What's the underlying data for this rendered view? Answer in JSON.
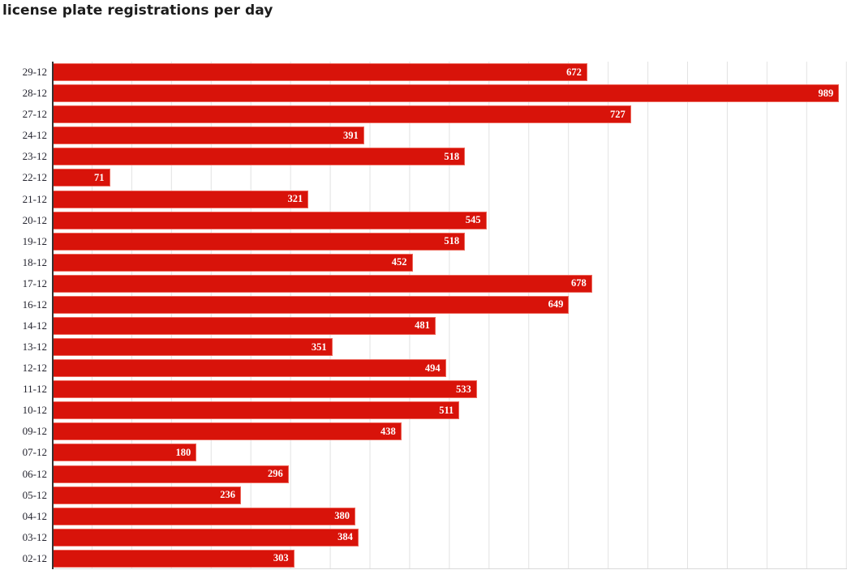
{
  "title": "license plate registrations per day",
  "colors": {
    "bar": "#d8130a",
    "bar_label": "#ffffff",
    "gridline": "#e2e2e2",
    "axis_line": "#333333",
    "title_text": "#1c1c1c",
    "tick_text": "#23232e"
  },
  "chart_data": {
    "type": "bar",
    "orientation": "horizontal",
    "title": "license plate registrations per day",
    "xlabel": "",
    "ylabel": "",
    "xlim": [
      0,
      1000
    ],
    "gridline_step": 50,
    "grid": "vertical-lines-on",
    "legend": "none",
    "value_labels": "inside-bar-end",
    "categories": [
      "29-12",
      "28-12",
      "27-12",
      "24-12",
      "23-12",
      "22-12",
      "21-12",
      "20-12",
      "19-12",
      "18-12",
      "17-12",
      "16-12",
      "14-12",
      "13-12",
      "12-12",
      "11-12",
      "10-12",
      "09-12",
      "07-12",
      "06-12",
      "05-12",
      "04-12",
      "03-12",
      "02-12"
    ],
    "values": [
      672,
      989,
      727,
      391,
      518,
      71,
      321,
      545,
      518,
      452,
      678,
      649,
      481,
      351,
      494,
      533,
      511,
      438,
      180,
      296,
      236,
      380,
      384,
      303
    ]
  }
}
